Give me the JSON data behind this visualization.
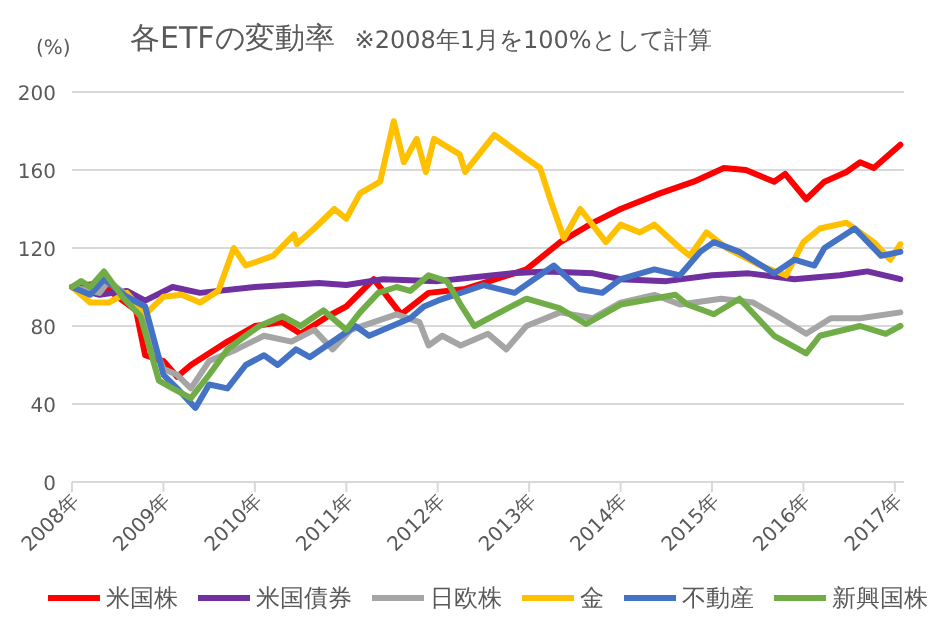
{
  "chart_data": {
    "type": "line",
    "title": "各ETFの変動率",
    "subtitle": "※2008年1月を100%として計算",
    "ylabel": "(%)",
    "xlim": [
      2008,
      2017.1
    ],
    "xticks": [
      {
        "value": 2008,
        "label": "2008年"
      },
      {
        "value": 2009,
        "label": "2009年"
      },
      {
        "value": 2010,
        "label": "2010年"
      },
      {
        "value": 2011,
        "label": "2011年"
      },
      {
        "value": 2012,
        "label": "2012年"
      },
      {
        "value": 2013,
        "label": "2013年"
      },
      {
        "value": 2014,
        "label": "2014年"
      },
      {
        "value": 2015,
        "label": "2015年"
      },
      {
        "value": 2016,
        "label": "2016年"
      },
      {
        "value": 2017,
        "label": "2017年"
      }
    ],
    "ylim": [
      0,
      200
    ],
    "yticks": [
      0,
      40,
      80,
      120,
      160,
      200
    ],
    "grid": "y",
    "legend": "bottom",
    "series": [
      {
        "name": "米国株",
        "color": "#ff0000",
        "x": [
          2008,
          2008.3,
          2008.5,
          2008.7,
          2008.8,
          2009,
          2009.15,
          2009.3,
          2009.5,
          2009.7,
          2010,
          2010.3,
          2010.5,
          2010.8,
          2011,
          2011.3,
          2011.6,
          2011.9,
          2012.3,
          2012.97,
          2013.34,
          2013.7,
          2014,
          2014.43,
          2014.8,
          2015.13,
          2015.37,
          2015.68,
          2015.8,
          2016.03,
          2016.23,
          2016.47,
          2016.62,
          2016.77,
          2017.06
        ],
        "values": [
          100,
          102,
          95,
          88,
          65,
          62,
          54,
          60,
          66,
          72,
          80,
          82,
          76,
          85,
          90,
          104,
          86,
          97,
          99,
          109,
          123,
          133,
          140,
          148,
          154,
          161,
          160,
          154,
          158,
          145,
          154,
          159,
          164,
          161,
          173
        ]
      },
      {
        "name": "米国債券",
        "color": "#7030a0",
        "x": [
          2008,
          2008.3,
          2008.6,
          2008.8,
          2009.1,
          2009.4,
          2010,
          2010.7,
          2011,
          2011.4,
          2012,
          2012.4,
          2012.8,
          2013.2,
          2013.7,
          2014,
          2014.5,
          2015,
          2015.4,
          2015.9,
          2016.4,
          2016.7,
          2017.06
        ],
        "values": [
          100,
          96,
          98,
          93,
          100,
          97,
          100,
          102,
          101,
          104,
          103,
          105,
          107,
          108,
          107,
          104,
          103,
          106,
          107,
          104,
          106,
          108,
          104
        ]
      },
      {
        "name": "日欧株",
        "color": "#a5a5a5",
        "x": [
          2008,
          2008.3,
          2008.4,
          2008.7,
          2009,
          2009.15,
          2009.3,
          2009.5,
          2009.8,
          2010.1,
          2010.4,
          2010.65,
          2010.85,
          2011.05,
          2011.3,
          2011.55,
          2011.8,
          2011.9,
          2012.05,
          2012.25,
          2012.55,
          2012.75,
          2012.97,
          2013.34,
          2013.7,
          2014,
          2014.37,
          2014.65,
          2015.1,
          2015.45,
          2015.75,
          2016.03,
          2016.3,
          2016.62,
          2017.06
        ],
        "values": [
          100,
          97,
          103,
          92,
          58,
          55,
          48,
          62,
          68,
          75,
          72,
          78,
          68,
          78,
          82,
          86,
          82,
          70,
          75,
          70,
          76,
          68,
          80,
          87,
          84,
          92,
          96,
          91,
          94,
          92,
          84,
          76,
          84,
          84,
          87
        ]
      },
      {
        "name": "金",
        "color": "#ffc000",
        "x": [
          2008,
          2008.2,
          2008.4,
          2008.6,
          2008.8,
          2009,
          2009.2,
          2009.4,
          2009.6,
          2009.77,
          2009.9,
          2010.2,
          2010.43,
          2010.46,
          2010.65,
          2010.87,
          2011,
          2011.15,
          2011.37,
          2011.52,
          2011.63,
          2011.77,
          2011.87,
          2011.96,
          2012.24,
          2012.3,
          2012.62,
          2012.97,
          2013.12,
          2013.23,
          2013.38,
          2013.56,
          2013.84,
          2014,
          2014.21,
          2014.37,
          2014.65,
          2014.76,
          2014.94,
          2015.16,
          2015.53,
          2015.81,
          2016,
          2016.18,
          2016.47,
          2016.77,
          2016.95,
          2017.06
        ],
        "values": [
          100,
          92,
          92,
          97,
          86,
          95,
          96,
          92,
          98,
          120,
          111,
          116,
          127,
          122,
          130,
          140,
          135,
          148,
          154,
          185,
          164,
          176,
          159,
          176,
          168,
          159,
          178,
          166,
          161,
          145,
          125,
          140,
          123,
          132,
          128,
          132,
          120,
          116,
          128,
          120,
          111,
          106,
          123,
          130,
          133,
          123,
          114,
          122
        ]
      },
      {
        "name": "不動産",
        "color": "#4472c4",
        "x": [
          2008,
          2008.2,
          2008.35,
          2008.6,
          2008.8,
          2009,
          2009.15,
          2009.35,
          2009.5,
          2009.7,
          2009.9,
          2010.1,
          2010.25,
          2010.45,
          2010.6,
          2010.85,
          2011.1,
          2011.25,
          2011.5,
          2011.7,
          2011.85,
          2012,
          2012.25,
          2012.5,
          2012.84,
          2013.27,
          2013.55,
          2013.8,
          2014,
          2014.37,
          2014.65,
          2014.87,
          2015.02,
          2015.3,
          2015.68,
          2015.9,
          2016.12,
          2016.23,
          2016.56,
          2016.85,
          2017.06
        ],
        "values": [
          100,
          96,
          104,
          95,
          90,
          55,
          48,
          38,
          50,
          48,
          60,
          65,
          60,
          68,
          64,
          72,
          80,
          75,
          80,
          84,
          90,
          93,
          97,
          101,
          97,
          111,
          99,
          97,
          104,
          109,
          106,
          118,
          123,
          118,
          107,
          114,
          111,
          120,
          130,
          116,
          118
        ]
      },
      {
        "name": "新興国株",
        "color": "#70ad47",
        "x": [
          2008,
          2008.1,
          2008.2,
          2008.35,
          2008.55,
          2008.75,
          2008.95,
          2009.1,
          2009.3,
          2009.5,
          2009.7,
          2009.9,
          2010.05,
          2010.3,
          2010.5,
          2010.75,
          2011,
          2011.15,
          2011.35,
          2011.55,
          2011.7,
          2011.9,
          2012.1,
          2012.25,
          2012.4,
          2012.68,
          2012.97,
          2013.34,
          2013.62,
          2014,
          2014.6,
          2014.73,
          2015.02,
          2015.3,
          2015.68,
          2016.03,
          2016.18,
          2016.62,
          2016.9,
          2017.06
        ],
        "values": [
          100,
          103,
          100,
          108,
          95,
          85,
          52,
          48,
          43,
          55,
          68,
          75,
          80,
          85,
          80,
          88,
          78,
          87,
          97,
          100,
          98,
          106,
          103,
          91,
          80,
          87,
          94,
          89,
          81,
          91,
          96,
          91,
          86,
          94,
          75,
          66,
          75,
          80,
          76,
          80
        ]
      }
    ]
  }
}
